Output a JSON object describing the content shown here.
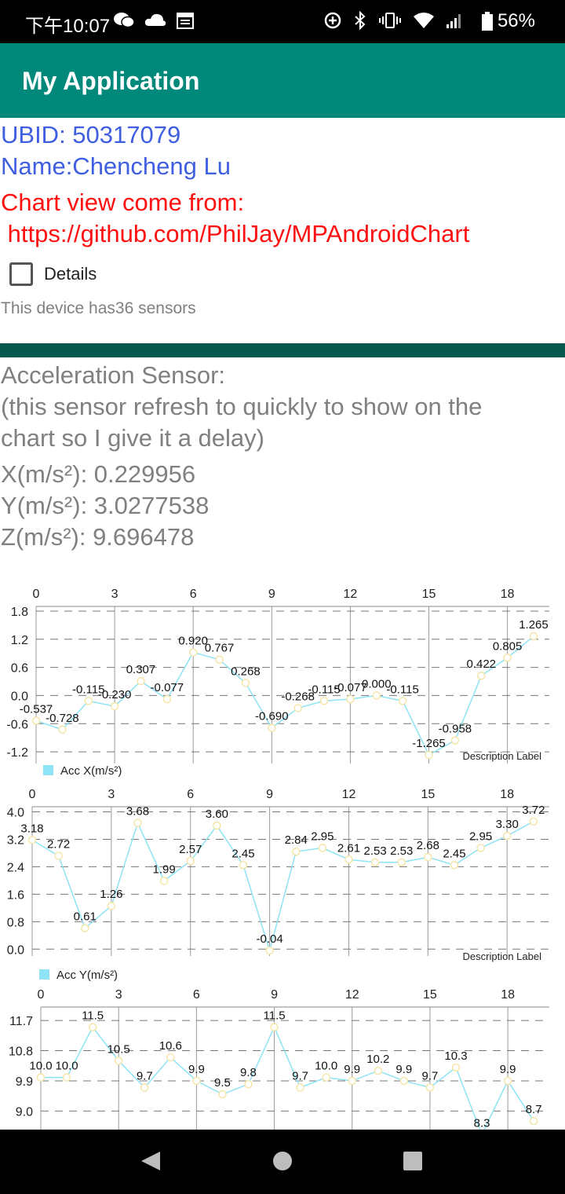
{
  "status": {
    "time": "下午10:07",
    "battery": "56%",
    "left_icons": [
      "wechat-icon",
      "cloud-icon",
      "calendar-icon"
    ],
    "right_icons": [
      "data-saver-icon",
      "bluetooth-icon",
      "vibrate-icon",
      "wifi-icon",
      "signal-icon",
      "battery-icon"
    ]
  },
  "app": {
    "title": "My Application",
    "bar_color": "#00897b"
  },
  "info": {
    "ubid": "UBID: 50317079",
    "name": "Name:Chencheng Lu",
    "chart_source_label": "Chart view come from:",
    "chart_source_url": " https://github.com/PhilJay/MPAndroidChart",
    "details_label": "Details",
    "sensor_count": "This device has36 sensors"
  },
  "sensor": {
    "title": "Acceleration Sensor:",
    "note_line1": "(this sensor refresh to quickly to show on the",
    "note_line2": "chart so I give it a delay)",
    "x": "X(m/s²): 0.229956",
    "y": "Y(m/s²): 3.0277538",
    "z": "Z(m/s²): 9.696478"
  },
  "chart_data": [
    {
      "type": "line",
      "legend": "Acc X(m/s²)",
      "description": "Description Label",
      "x_ticks": [
        "0",
        "3",
        "6",
        "9",
        "12",
        "15",
        "18"
      ],
      "y_ticks": [
        "1.8",
        "1.2",
        "0.6",
        "0.0",
        "-0.6",
        "-1.2"
      ],
      "ylim": [
        -1.45,
        1.9
      ],
      "x": [
        0,
        1,
        2,
        3,
        4,
        5,
        6,
        7,
        8,
        9,
        10,
        11,
        12,
        13,
        14,
        15,
        16,
        17,
        18,
        19
      ],
      "values": [
        -0.537,
        -0.728,
        -0.115,
        -0.23,
        0.307,
        -0.077,
        0.92,
        0.767,
        0.268,
        -0.69,
        -0.268,
        -0.115,
        -0.077,
        0.0,
        -0.115,
        -1.265,
        -0.958,
        0.422,
        0.805,
        1.265
      ],
      "labels": [
        "-0.537",
        "-0.728",
        "-0.115",
        "-0.230",
        "0.307",
        "-0.077",
        "0.920",
        "0.767",
        "0.268",
        "-0.690",
        "-0.268",
        "-0.115",
        "-0.077",
        "0.000",
        "-0.115",
        "-1.265",
        "-0.958",
        "0.422",
        "0.805",
        "1.265"
      ],
      "line_color": "#8ee3f5"
    },
    {
      "type": "line",
      "legend": "Acc Y(m/s²)",
      "description": "Description Label",
      "x_ticks": [
        "0",
        "3",
        "6",
        "9",
        "12",
        "15",
        "18"
      ],
      "y_ticks": [
        "4.0",
        "3.2",
        "2.4",
        "1.6",
        "0.8",
        "0.0"
      ],
      "ylim": [
        -0.2,
        4.15
      ],
      "x": [
        0,
        1,
        2,
        3,
        4,
        5,
        6,
        7,
        8,
        9,
        10,
        11,
        12,
        13,
        14,
        15,
        16,
        17,
        18,
        19
      ],
      "values": [
        3.18,
        2.72,
        0.61,
        1.26,
        3.68,
        1.99,
        2.57,
        3.6,
        2.45,
        -0.04,
        2.84,
        2.95,
        2.61,
        2.53,
        2.53,
        2.68,
        2.45,
        2.95,
        3.3,
        3.72
      ],
      "labels": [
        "3.18",
        "2.72",
        "0.61",
        "1.26",
        "3.68",
        "1.99",
        "2.57",
        "3.60",
        "2.45",
        "-0.04",
        "2.84",
        "2.95",
        "2.61",
        "2.53",
        "2.53",
        "2.68",
        "2.45",
        "2.95",
        "3.30",
        "3.72"
      ],
      "line_color": "#8ee3f5"
    },
    {
      "type": "line",
      "legend": "",
      "description": "",
      "x_ticks": [
        "0",
        "3",
        "6",
        "9",
        "12",
        "15",
        "18"
      ],
      "y_ticks": [
        "11.7",
        "10.8",
        "9.9",
        "9.0"
      ],
      "ylim": [
        8.4,
        12.1
      ],
      "x": [
        0,
        1,
        2,
        3,
        4,
        5,
        6,
        7,
        8,
        9,
        10,
        11,
        12,
        13,
        14,
        15,
        16,
        17,
        18,
        19
      ],
      "values": [
        10.0,
        10.0,
        11.5,
        10.5,
        9.7,
        10.6,
        9.9,
        9.5,
        9.8,
        11.5,
        9.7,
        10.0,
        9.9,
        10.2,
        9.9,
        9.7,
        10.3,
        8.3,
        9.9,
        8.7
      ],
      "labels": [
        "10.0",
        "10.0",
        "11.5",
        "10.5",
        "9.7",
        "10.6",
        "9.9",
        "9.5",
        "9.8",
        "11.5",
        "9.7",
        "10.0",
        "9.9",
        "10.2",
        "9.9",
        "9.7",
        "10.3",
        "8.3",
        "9.9",
        "8.7"
      ],
      "line_color": "#8ee3f5"
    }
  ]
}
